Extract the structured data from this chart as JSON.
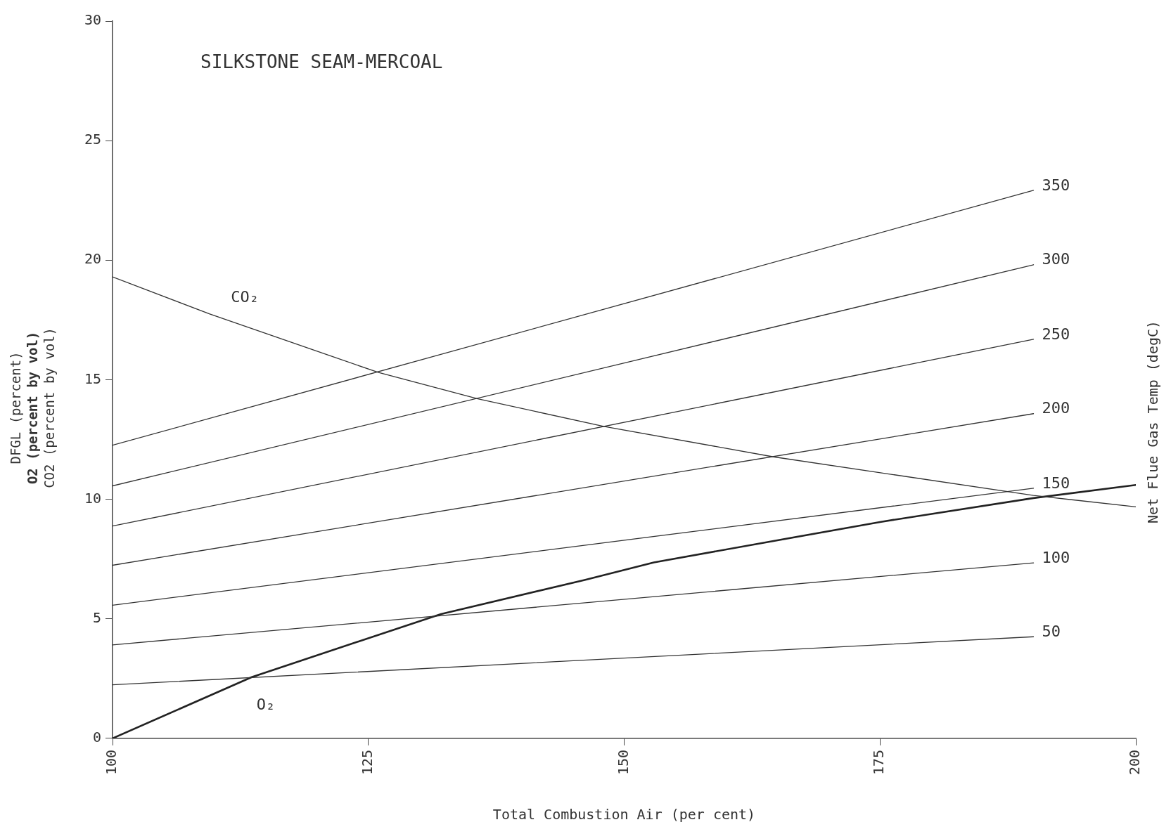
{
  "chart_data": {
    "type": "line",
    "title": "SILKSTONE SEAM-MERCOAL",
    "xlabel": "Total Combustion Air (per cent)",
    "ylabel": "DFGL (percent)\nO2 (percent by vol)\nCO2 (percent by vol)",
    "y2label": "Net Flue Gas Temp (degC)",
    "xlim": [
      100,
      200
    ],
    "xticks": [
      100,
      125,
      150,
      175,
      200
    ],
    "ylim": [
      0,
      30
    ],
    "yticks": [
      0,
      5,
      10,
      15,
      20,
      25,
      30
    ],
    "grid": false,
    "legend": false,
    "marker": "none",
    "line_style": "solid",
    "series": [
      {
        "name": "350",
        "color": "#333333",
        "x": [
          100,
          190
        ],
        "values": [
          12.26,
          22.92
        ]
      },
      {
        "name": "300",
        "color": "#333333",
        "x": [
          100,
          190
        ],
        "values": [
          10.56,
          19.81
        ]
      },
      {
        "name": "250",
        "color": "#333333",
        "x": [
          100,
          190
        ],
        "values": [
          8.88,
          16.69
        ]
      },
      {
        "name": "200",
        "color": "#333333",
        "x": [
          100,
          190
        ],
        "values": [
          7.24,
          13.58
        ]
      },
      {
        "name": "150",
        "color": "#333333",
        "x": [
          100,
          190
        ],
        "values": [
          5.57,
          10.46
        ]
      },
      {
        "name": "100",
        "color": "#333333",
        "x": [
          100,
          190
        ],
        "values": [
          3.91,
          7.34
        ]
      },
      {
        "name": "50",
        "color": "#333333",
        "x": [
          100,
          190
        ],
        "values": [
          2.24,
          4.25
        ]
      },
      {
        "name": "CO₂",
        "color": "#333333",
        "x": [
          100,
          109.5,
          126,
          135.7,
          148,
          164.5,
          190,
          200
        ],
        "values": [
          19.3,
          17.75,
          15.3,
          14.2,
          13.05,
          11.78,
          10.16,
          9.68
        ]
      },
      {
        "name": "O₂",
        "color": "#222222",
        "x": [
          100,
          113.6,
          132.1,
          146.2,
          152.9,
          175,
          190,
          200
        ],
        "values": [
          0,
          2.56,
          5.2,
          6.63,
          7.36,
          9.05,
          10.05,
          10.6
        ]
      }
    ]
  }
}
